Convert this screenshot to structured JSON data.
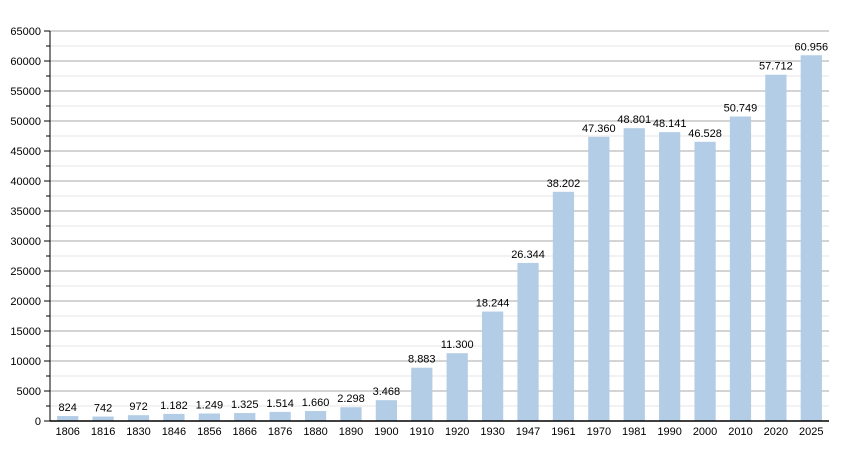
{
  "chart_data": {
    "type": "bar",
    "title": "",
    "xlabel": "",
    "ylabel": "",
    "ylim": [
      0,
      65000
    ],
    "yticks": [
      0,
      5000,
      10000,
      15000,
      20000,
      25000,
      30000,
      35000,
      40000,
      45000,
      50000,
      55000,
      60000,
      65000
    ],
    "grid": true,
    "bar_color": "#b3cde6",
    "categories": [
      "1806",
      "1816",
      "1830",
      "1846",
      "1856",
      "1866",
      "1876",
      "1880",
      "1890",
      "1900",
      "1910",
      "1920",
      "1930",
      "1947",
      "1961",
      "1970",
      "1981",
      "1990",
      "2000",
      "2010",
      "2020",
      "2025"
    ],
    "values": [
      824,
      742,
      972,
      1182,
      1249,
      1325,
      1514,
      1660,
      2298,
      3468,
      8883,
      11300,
      18244,
      26344,
      38202,
      47360,
      48801,
      48141,
      46528,
      50749,
      57712,
      60956
    ],
    "data_labels": [
      "824",
      "742",
      "972",
      "1.182",
      "1.249",
      "1.325",
      "1.514",
      "1.660",
      "2.298",
      "3.468",
      "8.883",
      "11.300",
      "18.244",
      "26.344",
      "38.202",
      "47.360",
      "48.801",
      "48.141",
      "46.528",
      "50.749",
      "57.712",
      "60.956"
    ]
  }
}
